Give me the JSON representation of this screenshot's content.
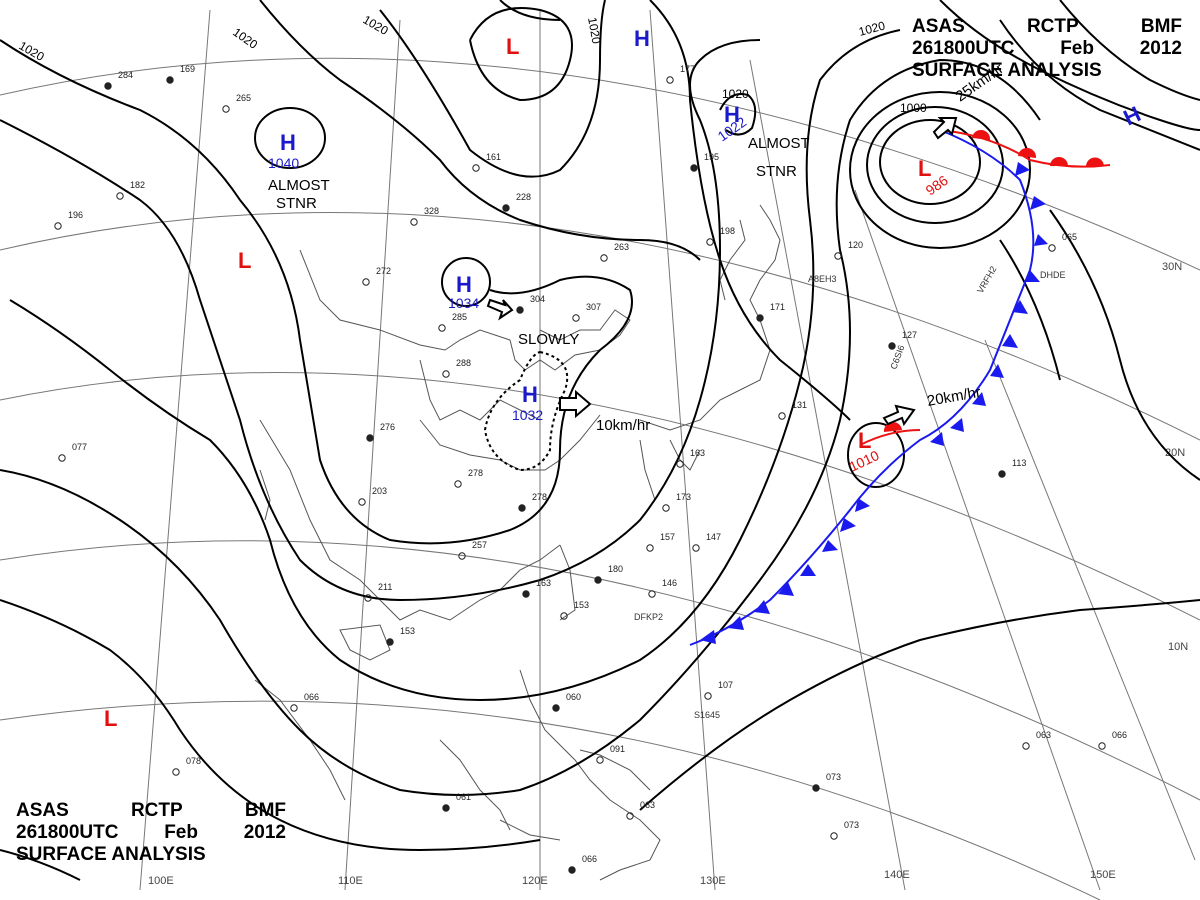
{
  "title": {
    "line1": [
      "ASAS",
      "RCTP",
      "BMF"
    ],
    "line2": [
      "261800UTC",
      "Feb",
      "2012"
    ],
    "line3": "SURFACE ANALYSIS"
  },
  "colors": {
    "high": "#1a1acc",
    "low": "#e01010",
    "cold_front": "#1a1aee",
    "warm_front": "#ee1111",
    "isobar": "#000000",
    "graticule": "#666666"
  },
  "longitude_labels": [
    "100E",
    "110E",
    "120E",
    "130E",
    "140E",
    "150E"
  ],
  "latitude_labels": [
    "30N",
    "20N",
    "10N"
  ],
  "isobar_labels": [
    "1020",
    "1020",
    "1020",
    "1020",
    "1020",
    "1000"
  ],
  "pressure_centers": [
    {
      "type": "H",
      "value": "1040"
    },
    {
      "type": "H",
      "value": "1034"
    },
    {
      "type": "H",
      "value": "1032"
    },
    {
      "type": "H",
      "value": "1022"
    },
    {
      "type": "H",
      "value": ""
    },
    {
      "type": "H",
      "value": ""
    },
    {
      "type": "L",
      "value": "986"
    },
    {
      "type": "L",
      "value": "1010"
    },
    {
      "type": "L",
      "value": ""
    },
    {
      "type": "L",
      "value": ""
    },
    {
      "type": "L",
      "value": ""
    }
  ],
  "annotations": {
    "almost_stnr_1": [
      "ALMOST",
      "STNR"
    ],
    "almost_stnr_2": [
      "ALMOST",
      "STNR"
    ],
    "slowly": "SLOWLY",
    "speed_10": "10km/hr",
    "speed_20": "20km/hr",
    "speed_25": "25km/hr"
  },
  "station_ids": [
    "DFKP2",
    "VRFH2",
    "DHDE",
    "C6SI6",
    "A8EH3",
    "S1645"
  ],
  "station_numbers": [
    "284",
    "182",
    "196",
    "169",
    "265",
    "161",
    "228",
    "328",
    "272",
    "304",
    "307",
    "263",
    "195",
    "198",
    "177",
    "171",
    "285",
    "288",
    "276",
    "278",
    "203",
    "278",
    "257",
    "211",
    "153",
    "173",
    "157",
    "180",
    "147",
    "146",
    "163",
    "153",
    "163",
    "127",
    "120",
    "131",
    "113",
    "065",
    "107",
    "060",
    "091",
    "063",
    "066",
    "063",
    "066",
    "073",
    "073",
    "066",
    "061",
    "077",
    "078"
  ]
}
